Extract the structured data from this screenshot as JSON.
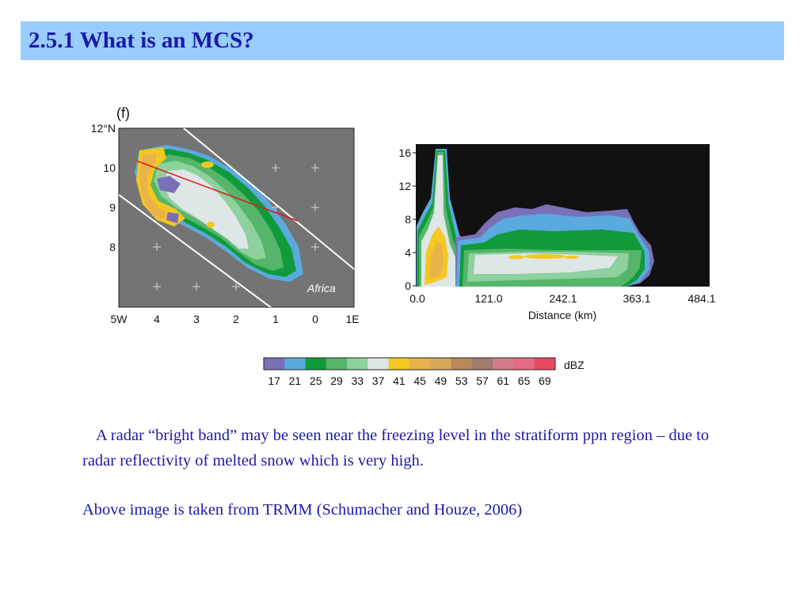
{
  "slide": {
    "title": "2.5.1 What is an MCS?",
    "paragraph1": "A radar “bright band” may be seen near the freezing level in the stratiform ppn region – due to radar reflectivity of melted snow which is very high.",
    "paragraph2": "Above image is taken from TRMM (Schumacher and Houze, 2006)"
  },
  "map_panel": {
    "panel_label": "(f)",
    "region_label": "Africa",
    "lat_ticks": [
      "12°N",
      "10",
      "9",
      "8"
    ],
    "lon_ticks": [
      "5W",
      "4",
      "3",
      "2",
      "1",
      "0",
      "1E"
    ]
  },
  "cross_section": {
    "xlabel": "Distance (km)",
    "x_ticks": [
      "0.0",
      "121.0",
      "242.1",
      "363.1",
      "484.1"
    ],
    "y_ticks": [
      "16",
      "12",
      "8",
      "4",
      "0"
    ]
  },
  "colorbar": {
    "unit": "dBZ",
    "values": [
      "17",
      "21",
      "25",
      "29",
      "33",
      "37",
      "41",
      "45",
      "49",
      "53",
      "57",
      "61",
      "65",
      "69"
    ],
    "colors": [
      "#7a70b8",
      "#5aaadf",
      "#119a3a",
      "#55b56a",
      "#8ed09e",
      "#dfe6e6",
      "#f4c820",
      "#eab24b",
      "#d8a95b",
      "#b8895c",
      "#a07a6a",
      "#d27c8a",
      "#e66a84",
      "#e64a62"
    ]
  }
}
